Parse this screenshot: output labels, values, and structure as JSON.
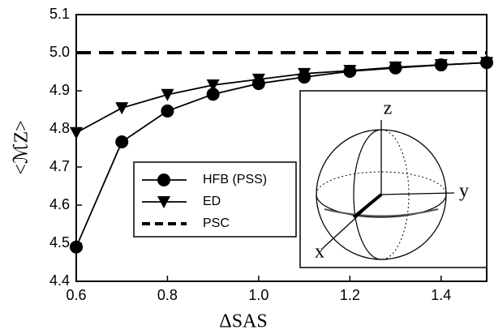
{
  "chart_data": {
    "type": "line",
    "xlabel": "ΔSAS",
    "ylabel": "<ℳZ>",
    "x": [
      0.6,
      0.7,
      0.8,
      0.9,
      1.0,
      1.1,
      1.2,
      1.3,
      1.4,
      1.5
    ],
    "series": [
      {
        "name": "HFB (PSS)",
        "color": "#000000",
        "marker": "circle",
        "dash": false,
        "values": [
          4.49,
          4.766,
          4.847,
          4.891,
          4.919,
          4.936,
          4.951,
          4.96,
          4.968,
          4.974
        ]
      },
      {
        "name": "ED",
        "color": "#000000",
        "marker": "triangle-down",
        "dash": false,
        "values": [
          4.79,
          4.855,
          4.89,
          4.915,
          4.93,
          4.945,
          4.953,
          4.962,
          4.968,
          4.974
        ]
      },
      {
        "name": "PSC",
        "color": "#000000",
        "marker": "none",
        "dash": true,
        "values": [
          5.0,
          5.0,
          5.0,
          5.0,
          5.0,
          5.0,
          5.0,
          5.0,
          5.0,
          5.0
        ]
      }
    ],
    "xlim": [
      0.6,
      1.5
    ],
    "xticks": [
      0.6,
      0.8,
      {
        "value": 1,
        "label": "1.0"
      },
      1.2,
      1.4
    ],
    "ylim": [
      4.4,
      5.1
    ],
    "yticks": [
      4.4,
      4.5,
      4.6,
      4.7,
      4.8,
      4.9,
      {
        "value": 5,
        "label": "5.0"
      },
      5.1
    ],
    "grid": false,
    "legend": "lower-center",
    "inset_labels": [
      "z",
      "y",
      "x"
    ]
  }
}
